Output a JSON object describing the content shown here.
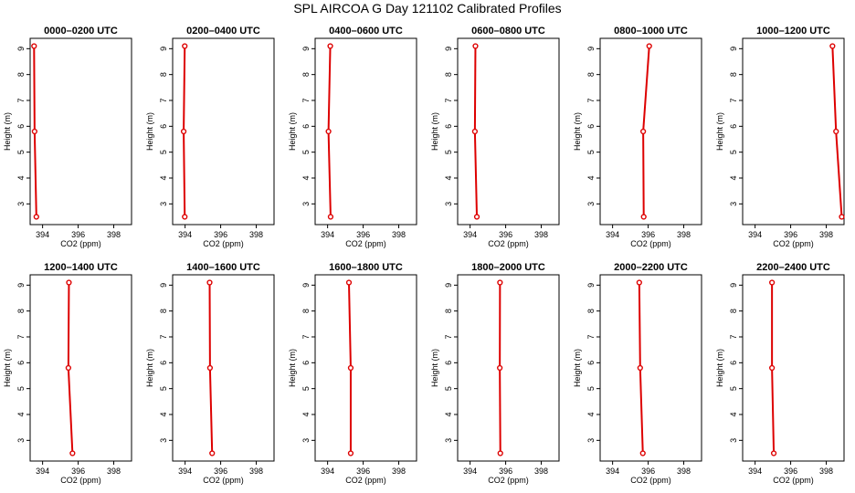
{
  "title": "SPL AIRCOA G  Day 121102  Calibrated Profiles",
  "colors": {
    "profile": "#dd0000",
    "axis": "#000000"
  },
  "chart_data": [
    {
      "type": "line",
      "title": "0000–0200 UTC",
      "xlabel": "CO2 (ppm)",
      "ylabel": "Height (m)",
      "xlim": [
        393.3,
        399.0
      ],
      "ylim": [
        2.2,
        9.4
      ],
      "xticks": [
        394,
        396,
        398
      ],
      "yticks": [
        3,
        4,
        5,
        6,
        7,
        8,
        9
      ],
      "series": [
        {
          "x": [
            393.65,
            393.55,
            393.52
          ],
          "y": [
            2.5,
            5.8,
            9.1
          ]
        }
      ]
    },
    {
      "type": "line",
      "title": "0200–0400 UTC",
      "xlabel": "CO2 (ppm)",
      "ylabel": "Height (m)",
      "xlim": [
        393.3,
        399.0
      ],
      "ylim": [
        2.2,
        9.4
      ],
      "xticks": [
        394,
        396,
        398
      ],
      "yticks": [
        3,
        4,
        5,
        6,
        7,
        8,
        9
      ],
      "series": [
        {
          "x": [
            393.98,
            393.92,
            393.98
          ],
          "y": [
            2.5,
            5.8,
            9.1
          ]
        }
      ]
    },
    {
      "type": "line",
      "title": "0400–0600 UTC",
      "xlabel": "CO2 (ppm)",
      "ylabel": "Height (m)",
      "xlim": [
        393.3,
        399.0
      ],
      "ylim": [
        2.2,
        9.4
      ],
      "xticks": [
        394,
        396,
        398
      ],
      "yticks": [
        3,
        4,
        5,
        6,
        7,
        8,
        9
      ],
      "series": [
        {
          "x": [
            394.17,
            394.05,
            394.15
          ],
          "y": [
            2.5,
            5.8,
            9.1
          ]
        }
      ]
    },
    {
      "type": "line",
      "title": "0600–0800 UTC",
      "xlabel": "CO2 (ppm)",
      "ylabel": "Height (m)",
      "xlim": [
        393.3,
        399.0
      ],
      "ylim": [
        2.2,
        9.4
      ],
      "xticks": [
        394,
        396,
        398
      ],
      "yticks": [
        3,
        4,
        5,
        6,
        7,
        8,
        9
      ],
      "series": [
        {
          "x": [
            394.38,
            394.27,
            394.3
          ],
          "y": [
            2.5,
            5.8,
            9.1
          ]
        }
      ]
    },
    {
      "type": "line",
      "title": "0800–1000 UTC",
      "xlabel": "CO2 (ppm)",
      "ylabel": "Height (m)",
      "xlim": [
        393.3,
        399.0
      ],
      "ylim": [
        2.2,
        9.4
      ],
      "xticks": [
        394,
        396,
        398
      ],
      "yticks": [
        3,
        4,
        5,
        6,
        7,
        8,
        9
      ],
      "series": [
        {
          "x": [
            395.75,
            395.72,
            396.06
          ],
          "y": [
            2.5,
            5.8,
            9.1
          ]
        }
      ]
    },
    {
      "type": "line",
      "title": "1000–1200 UTC",
      "xlabel": "CO2 (ppm)",
      "ylabel": "Height (m)",
      "xlim": [
        393.3,
        399.0
      ],
      "ylim": [
        2.2,
        9.4
      ],
      "xticks": [
        394,
        396,
        398
      ],
      "yticks": [
        3,
        4,
        5,
        6,
        7,
        8,
        9
      ],
      "series": [
        {
          "x": [
            398.87,
            398.55,
            398.35
          ],
          "y": [
            2.5,
            5.8,
            9.1
          ]
        }
      ]
    },
    {
      "type": "line",
      "title": "1200–1400 UTC",
      "xlabel": "CO2 (ppm)",
      "ylabel": "Height (m)",
      "xlim": [
        393.3,
        399.0
      ],
      "ylim": [
        2.2,
        9.4
      ],
      "xticks": [
        394,
        396,
        398
      ],
      "yticks": [
        3,
        4,
        5,
        6,
        7,
        8,
        9
      ],
      "series": [
        {
          "x": [
            395.68,
            395.45,
            395.48
          ],
          "y": [
            2.5,
            5.8,
            9.1
          ]
        }
      ]
    },
    {
      "type": "line",
      "title": "1400–1600 UTC",
      "xlabel": "CO2 (ppm)",
      "ylabel": "Height (m)",
      "xlim": [
        393.3,
        399.0
      ],
      "ylim": [
        2.2,
        9.4
      ],
      "xticks": [
        394,
        396,
        398
      ],
      "yticks": [
        3,
        4,
        5,
        6,
        7,
        8,
        9
      ],
      "series": [
        {
          "x": [
            395.52,
            395.4,
            395.38
          ],
          "y": [
            2.5,
            5.8,
            9.1
          ]
        }
      ]
    },
    {
      "type": "line",
      "title": "1600–1800 UTC",
      "xlabel": "CO2 (ppm)",
      "ylabel": "Height (m)",
      "xlim": [
        393.3,
        399.0
      ],
      "ylim": [
        2.2,
        9.4
      ],
      "xticks": [
        394,
        396,
        398
      ],
      "yticks": [
        3,
        4,
        5,
        6,
        7,
        8,
        9
      ],
      "series": [
        {
          "x": [
            395.3,
            395.3,
            395.2
          ],
          "y": [
            2.5,
            5.8,
            9.1
          ]
        }
      ]
    },
    {
      "type": "line",
      "title": "1800–2000 UTC",
      "xlabel": "CO2 (ppm)",
      "ylabel": "Height (m)",
      "xlim": [
        393.3,
        399.0
      ],
      "ylim": [
        2.2,
        9.4
      ],
      "xticks": [
        394,
        396,
        398
      ],
      "yticks": [
        3,
        4,
        5,
        6,
        7,
        8,
        9
      ],
      "series": [
        {
          "x": [
            395.7,
            395.67,
            395.68
          ],
          "y": [
            2.5,
            5.8,
            9.1
          ]
        }
      ]
    },
    {
      "type": "line",
      "title": "2000–2200 UTC",
      "xlabel": "CO2 (ppm)",
      "ylabel": "Height (m)",
      "xlim": [
        393.3,
        399.0
      ],
      "ylim": [
        2.2,
        9.4
      ],
      "xticks": [
        394,
        396,
        398
      ],
      "yticks": [
        3,
        4,
        5,
        6,
        7,
        8,
        9
      ],
      "series": [
        {
          "x": [
            395.7,
            395.55,
            395.5
          ],
          "y": [
            2.5,
            5.8,
            9.1
          ]
        }
      ]
    },
    {
      "type": "line",
      "title": "2200–2400 UTC",
      "xlabel": "CO2 (ppm)",
      "ylabel": "Height (m)",
      "xlim": [
        393.3,
        399.0
      ],
      "ylim": [
        2.2,
        9.4
      ],
      "xticks": [
        394,
        396,
        398
      ],
      "yticks": [
        3,
        4,
        5,
        6,
        7,
        8,
        9
      ],
      "series": [
        {
          "x": [
            395.05,
            394.95,
            394.95
          ],
          "y": [
            2.5,
            5.8,
            9.1
          ]
        }
      ]
    }
  ]
}
